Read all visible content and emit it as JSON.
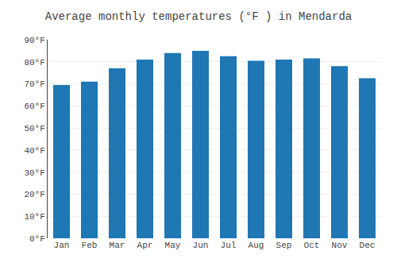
{
  "chart_data": {
    "type": "bar",
    "title": "Average monthly temperatures (°F ) in Mendarda",
    "categories": [
      "Jan",
      "Feb",
      "Mar",
      "Apr",
      "May",
      "Jun",
      "Jul",
      "Aug",
      "Sep",
      "Oct",
      "Nov",
      "Dec"
    ],
    "values": [
      69.5,
      71,
      77,
      81,
      84,
      85,
      82.5,
      80.5,
      81,
      81.5,
      78,
      72.5
    ],
    "ylim": [
      0,
      90
    ],
    "yticks": [
      {
        "value": 0,
        "label": "0°F"
      },
      {
        "value": 10,
        "label": "10°F"
      },
      {
        "value": 20,
        "label": "20°F"
      },
      {
        "value": 30,
        "label": "30°F"
      },
      {
        "value": 40,
        "label": "40°F"
      },
      {
        "value": 50,
        "label": "50°F"
      },
      {
        "value": 60,
        "label": "60°F"
      },
      {
        "value": 70,
        "label": "70°F"
      },
      {
        "value": 80,
        "label": "80°F"
      },
      {
        "value": 90,
        "label": "90°F"
      }
    ],
    "grid": true
  }
}
